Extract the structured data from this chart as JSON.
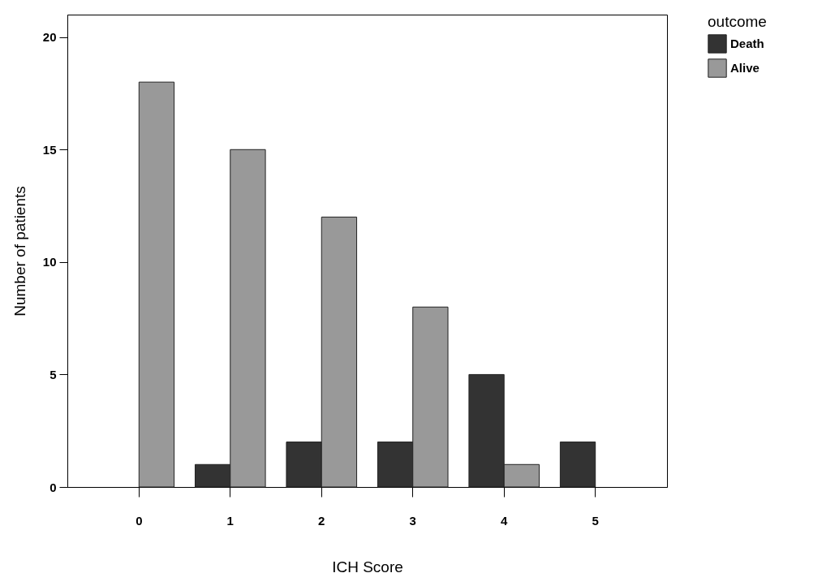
{
  "chart_data": {
    "type": "bar",
    "xlabel": "ICH Score",
    "ylabel": "Number of patients",
    "legend_title": "outcome",
    "categories": [
      "0",
      "1",
      "2",
      "3",
      "4",
      "5"
    ],
    "series": [
      {
        "name": "Death",
        "color": "#333333",
        "values": [
          null,
          1,
          2,
          2,
          5,
          2
        ]
      },
      {
        "name": "Alive",
        "color": "#999999",
        "values": [
          18,
          15,
          12,
          8,
          1,
          null
        ]
      }
    ],
    "ylim": [
      0,
      21
    ],
    "yticks": [
      0,
      5,
      10,
      15,
      20
    ],
    "grid": false,
    "legend": "top right"
  }
}
